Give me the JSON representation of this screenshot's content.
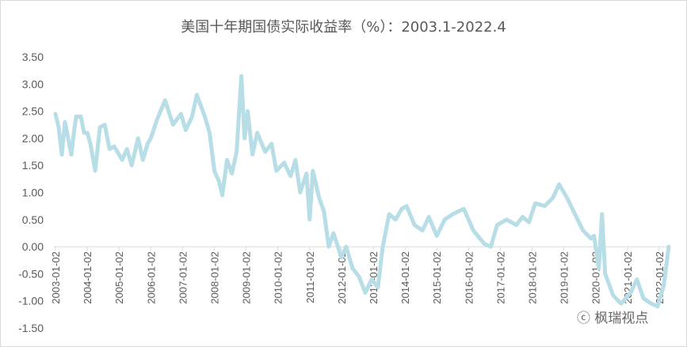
{
  "chart_data": {
    "type": "line",
    "title": "美国十年期国债实际收益率（%）：2003.1-2022.4",
    "xlabel": "",
    "ylabel": "",
    "ylim": [
      -1.5,
      3.5
    ],
    "yticks": [
      "3.50",
      "3.00",
      "2.50",
      "2.00",
      "1.50",
      "1.00",
      "0.50",
      "0.00",
      "-0.50",
      "-1.00",
      "-1.50"
    ],
    "xticks": [
      "2003-01-02",
      "2004-01-02",
      "2005-01-02",
      "2006-01-02",
      "2007-01-02",
      "2008-01-02",
      "2009-01-02",
      "2010-01-02",
      "2011-01-02",
      "2012-01-02",
      "2013-01-02",
      "2014-01-02",
      "2015-01-02",
      "2016-01-02",
      "2017-01-02",
      "2018-01-02",
      "2019-01-02",
      "2020-01-02",
      "2021-01-02",
      "2022-01-02"
    ],
    "grid": false,
    "series": [
      {
        "name": "美国十年期国债实际收益率",
        "color": "#b7dde6",
        "points": [
          [
            2003.0,
            2.45
          ],
          [
            2003.1,
            2.2
          ],
          [
            2003.2,
            1.7
          ],
          [
            2003.3,
            2.3
          ],
          [
            2003.5,
            1.7
          ],
          [
            2003.6,
            2.2
          ],
          [
            2003.65,
            2.4
          ],
          [
            2003.8,
            2.4
          ],
          [
            2003.9,
            2.1
          ],
          [
            2004.0,
            2.1
          ],
          [
            2004.1,
            1.9
          ],
          [
            2004.25,
            1.4
          ],
          [
            2004.4,
            2.2
          ],
          [
            2004.55,
            2.25
          ],
          [
            2004.7,
            1.8
          ],
          [
            2004.85,
            1.85
          ],
          [
            2005.0,
            1.7
          ],
          [
            2005.1,
            1.6
          ],
          [
            2005.25,
            1.8
          ],
          [
            2005.4,
            1.5
          ],
          [
            2005.6,
            2.0
          ],
          [
            2005.75,
            1.6
          ],
          [
            2005.9,
            1.9
          ],
          [
            2006.0,
            2.0
          ],
          [
            2006.2,
            2.35
          ],
          [
            2006.45,
            2.7
          ],
          [
            2006.7,
            2.25
          ],
          [
            2006.95,
            2.45
          ],
          [
            2007.1,
            2.15
          ],
          [
            2007.3,
            2.4
          ],
          [
            2007.45,
            2.8
          ],
          [
            2007.7,
            2.4
          ],
          [
            2007.85,
            2.1
          ],
          [
            2008.0,
            1.4
          ],
          [
            2008.15,
            1.2
          ],
          [
            2008.25,
            0.95
          ],
          [
            2008.4,
            1.6
          ],
          [
            2008.55,
            1.35
          ],
          [
            2008.7,
            1.75
          ],
          [
            2008.85,
            3.15
          ],
          [
            2008.95,
            2.0
          ],
          [
            2009.05,
            2.5
          ],
          [
            2009.2,
            1.7
          ],
          [
            2009.35,
            2.1
          ],
          [
            2009.6,
            1.75
          ],
          [
            2009.8,
            1.9
          ],
          [
            2009.95,
            1.4
          ],
          [
            2010.2,
            1.55
          ],
          [
            2010.4,
            1.3
          ],
          [
            2010.55,
            1.6
          ],
          [
            2010.7,
            1.0
          ],
          [
            2010.9,
            1.35
          ],
          [
            2011.0,
            0.5
          ],
          [
            2011.1,
            1.4
          ],
          [
            2011.3,
            0.9
          ],
          [
            2011.45,
            0.65
          ],
          [
            2011.6,
            0.0
          ],
          [
            2011.75,
            0.25
          ],
          [
            2012.0,
            -0.2
          ],
          [
            2012.15,
            0.0
          ],
          [
            2012.35,
            -0.4
          ],
          [
            2012.55,
            -0.55
          ],
          [
            2012.75,
            -0.85
          ],
          [
            2012.95,
            -0.6
          ],
          [
            2013.15,
            -0.75
          ],
          [
            2013.3,
            0.0
          ],
          [
            2013.5,
            0.6
          ],
          [
            2013.7,
            0.5
          ],
          [
            2013.9,
            0.7
          ],
          [
            2014.05,
            0.75
          ],
          [
            2014.3,
            0.4
          ],
          [
            2014.55,
            0.3
          ],
          [
            2014.75,
            0.55
          ],
          [
            2015.0,
            0.2
          ],
          [
            2015.25,
            0.5
          ],
          [
            2015.5,
            0.6
          ],
          [
            2015.85,
            0.7
          ],
          [
            2016.15,
            0.3
          ],
          [
            2016.5,
            0.05
          ],
          [
            2016.7,
            0.0
          ],
          [
            2016.9,
            0.4
          ],
          [
            2017.2,
            0.5
          ],
          [
            2017.5,
            0.4
          ],
          [
            2017.7,
            0.55
          ],
          [
            2017.9,
            0.45
          ],
          [
            2018.1,
            0.8
          ],
          [
            2018.4,
            0.75
          ],
          [
            2018.65,
            0.9
          ],
          [
            2018.85,
            1.15
          ],
          [
            2019.1,
            0.9
          ],
          [
            2019.35,
            0.6
          ],
          [
            2019.6,
            0.3
          ],
          [
            2019.85,
            0.15
          ],
          [
            2019.95,
            0.2
          ],
          [
            2020.1,
            -0.4
          ],
          [
            2020.2,
            0.6
          ],
          [
            2020.3,
            -0.5
          ],
          [
            2020.55,
            -0.9
          ],
          [
            2020.8,
            -1.05
          ],
          [
            2021.1,
            -0.85
          ],
          [
            2021.3,
            -0.6
          ],
          [
            2021.5,
            -0.95
          ],
          [
            2021.75,
            -1.05
          ],
          [
            2021.95,
            -1.1
          ],
          [
            2022.15,
            -0.7
          ],
          [
            2022.3,
            0.0
          ]
        ]
      }
    ]
  },
  "watermark": "枫瑞视点"
}
